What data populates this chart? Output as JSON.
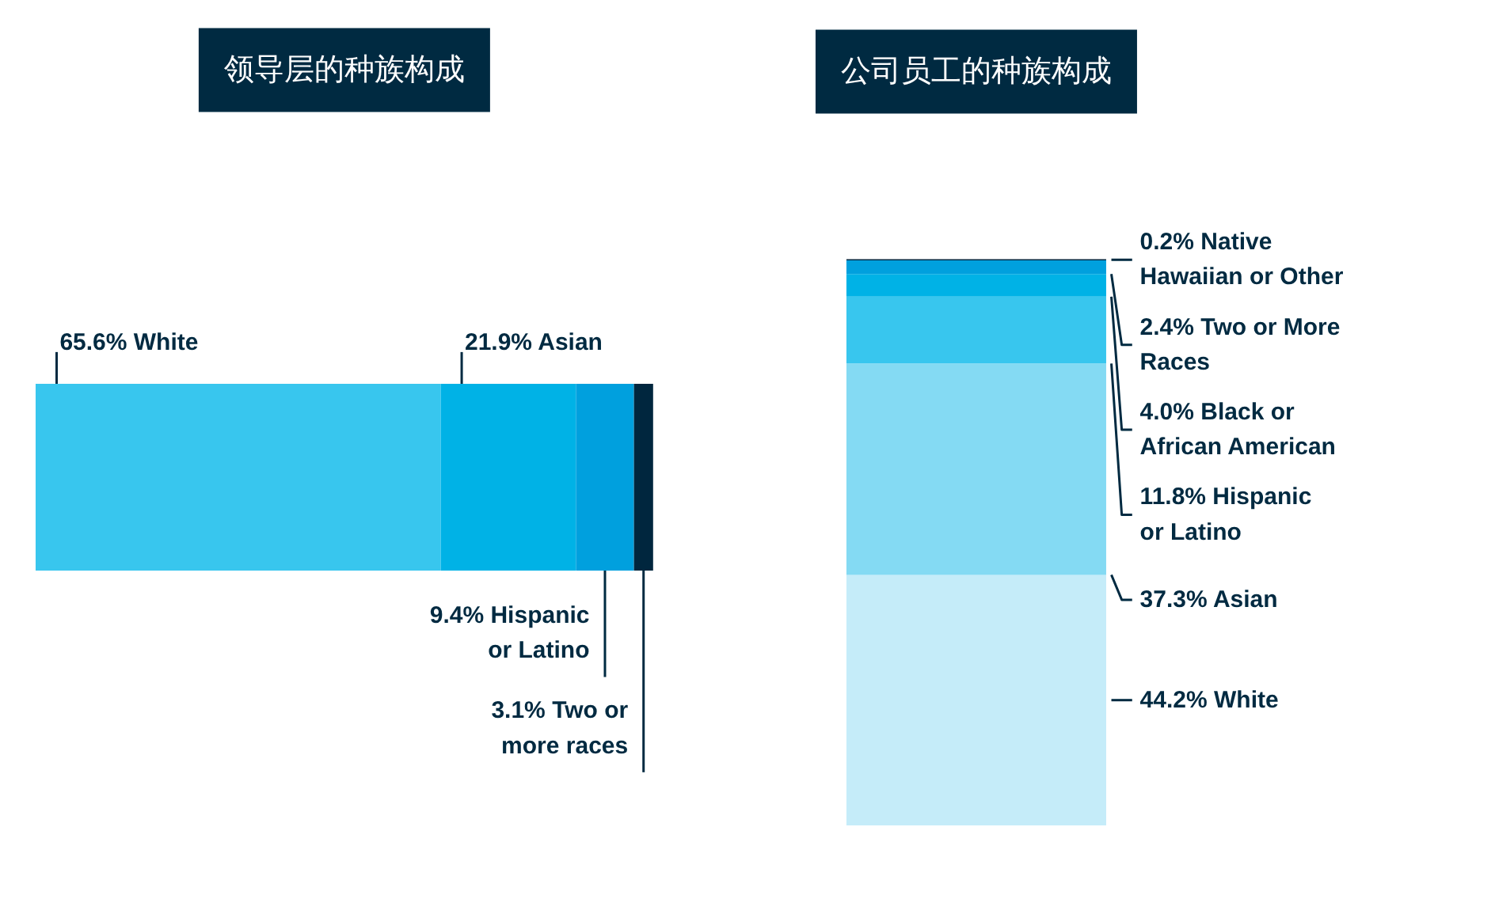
{
  "chart_data": [
    {
      "type": "bar",
      "title": "领导层的种族构成",
      "orientation": "horizontal",
      "stacked": true,
      "categories": [
        null
      ],
      "xlim": [
        0,
        100
      ],
      "tick_labels": false,
      "grid": false,
      "series": [
        {
          "color": "#38c6ee",
          "values": [
            65.6
          ],
          "value_labels": [
            "65.6% White"
          ]
        },
        {
          "color": "#00b2e6",
          "values": [
            21.9
          ],
          "value_labels": [
            "21.9% Asian"
          ]
        },
        {
          "color": "#00a0de",
          "values": [
            9.4
          ],
          "value_labels": [
            "9.4% Hispanic\nor Latino"
          ]
        },
        {
          "color": "#00263e",
          "values": [
            3.1
          ],
          "value_labels": [
            "3.1% Two or\nmore races"
          ]
        }
      ]
    },
    {
      "type": "bar",
      "title": "公司员工的种族构成",
      "stacked": true,
      "categories": [
        null
      ],
      "ylim": [
        0,
        100
      ],
      "tick_labels": false,
      "grid": false,
      "series": [
        {
          "color": "#c5ecf9",
          "values": [
            44.2
          ],
          "value_labels": [
            "44.2% White"
          ]
        },
        {
          "color": "#84daf3",
          "values": [
            37.3
          ],
          "value_labels": [
            "37.3% Asian"
          ]
        },
        {
          "color": "#38c6ee",
          "values": [
            11.8
          ],
          "value_labels": [
            "11.8% Hispanic\nor Latino"
          ]
        },
        {
          "color": "#00b2e6",
          "values": [
            4.0
          ],
          "value_labels": [
            "4.0% Black or\nAfrican American"
          ]
        },
        {
          "color": "#00a0de",
          "values": [
            2.4
          ],
          "value_labels": [
            "2.4% Two or More\nRaces"
          ]
        },
        {
          "color": "#00263e",
          "values": [
            0.2
          ],
          "value_labels": [
            "0.2% Native\nHawaiian or Other"
          ]
        }
      ]
    }
  ]
}
